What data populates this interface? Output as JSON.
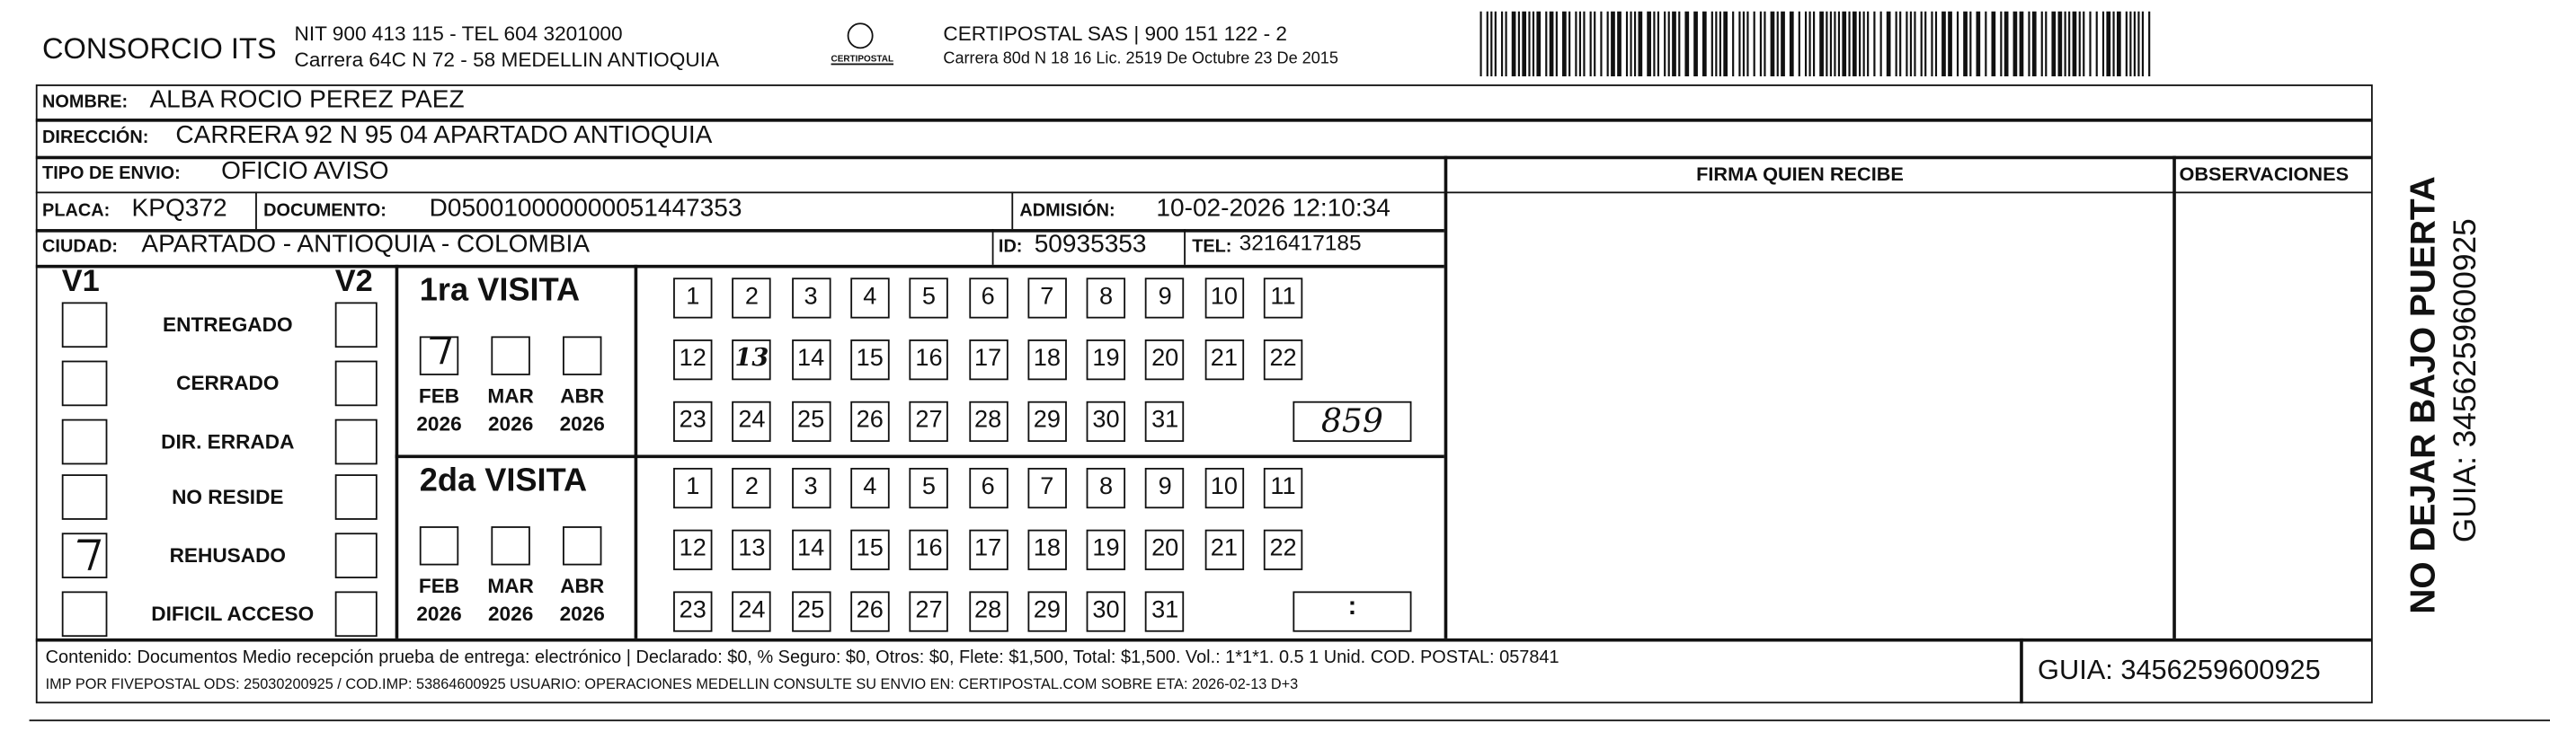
{
  "header": {
    "company": "CONSORCIO ITS",
    "nit": "NIT 900 413 115 - TEL 604 3201000",
    "address": "Carrera 64C N 72 - 58 MEDELLIN ANTIOQUIA",
    "logo": "CERTIPOSTAL",
    "carrier": "CERTIPOSTAL SAS | 900 151 122 - 2",
    "carrier_address": "Carrera 80d N 18 16 Lic. 2519 De Octubre 23 De 2015"
  },
  "fields": {
    "nombre": {
      "label": "NOMBRE:",
      "value": "ALBA ROCIO PEREZ PAEZ"
    },
    "direccion": {
      "label": "DIRECCIÓN:",
      "value": "CARRERA 92 N 95 04 APARTADO ANTIOQUIA"
    },
    "tipo": {
      "label": "TIPO DE ENVIO:",
      "value": "OFICIO AVISO"
    },
    "placa": {
      "label": "PLACA:",
      "value": "KPQ372"
    },
    "documento": {
      "label": "DOCUMENTO:",
      "value": "D050010000000051447353"
    },
    "admision": {
      "label": "ADMISIÓN:",
      "value": "10-02-2026 12:10:34"
    },
    "ciudad": {
      "label": "CIUDAD:",
      "value": "APARTADO - ANTIOQUIA - COLOMBIA"
    },
    "id": {
      "label": "ID:",
      "value": "50935353"
    },
    "tel": {
      "label": "TEL:",
      "value": "3216417185"
    }
  },
  "columns": {
    "firma": "FIRMA QUIEN RECIBE",
    "observaciones": "OBSERVACIONES"
  },
  "v1": "V1",
  "v2": "V2",
  "reasons": [
    {
      "label": "ENTREGADO",
      "v1": false
    },
    {
      "label": "CERRADO",
      "v1": false
    },
    {
      "label": "DIR. ERRADA",
      "v1": false
    },
    {
      "label": "NO RESIDE",
      "v1": false
    },
    {
      "label": "REHUSADO",
      "v1": true
    },
    {
      "label": "DIFICIL ACCESO",
      "v1": false
    }
  ],
  "visits": [
    {
      "title": "1ra VISITA",
      "months": [
        {
          "month": "FEB",
          "year": "2026",
          "checked": true
        },
        {
          "month": "MAR",
          "year": "2026",
          "checked": false
        },
        {
          "month": "ABR",
          "year": "2026",
          "checked": false
        }
      ],
      "days": [
        1,
        2,
        3,
        4,
        5,
        6,
        7,
        8,
        9,
        10,
        11,
        12,
        13,
        14,
        15,
        16,
        17,
        18,
        19,
        20,
        21,
        22,
        23,
        24,
        25,
        26,
        27,
        28,
        29,
        30,
        31
      ],
      "marked_day": 13,
      "time": "859"
    },
    {
      "title": "2da VISITA",
      "months": [
        {
          "month": "FEB",
          "year": "2026",
          "checked": false
        },
        {
          "month": "MAR",
          "year": "2026",
          "checked": false
        },
        {
          "month": "ABR",
          "year": "2026",
          "checked": false
        }
      ],
      "days": [
        1,
        2,
        3,
        4,
        5,
        6,
        7,
        8,
        9,
        10,
        11,
        12,
        13,
        14,
        15,
        16,
        17,
        18,
        19,
        20,
        21,
        22,
        23,
        24,
        25,
        26,
        27,
        28,
        29,
        30,
        31
      ],
      "time": ":"
    }
  ],
  "footer": {
    "contenido": "Contenido: Documentos Medio recepción prueba de entrega: electrónico | Declarado: $0, % Seguro: $0, Otros: $0, Flete: $1,500, Total: $1,500. Vol.: 1*1*1. 0.5  1 Unid. COD. POSTAL: 057841",
    "imp": "IMP POR FIVEPOSTAL ODS: 25030200925 / COD.IMP: 53864600925 USUARIO: OPERACIONES MEDELLIN CONSULTE SU ENVIO EN: CERTIPOSTAL.COM SOBRE ETA: 2026-02-13 D+3",
    "guia": "GUIA: 3456259600925"
  },
  "side": {
    "warning": "NO DEJAR BAJO PUERTA",
    "guia": "GUIA: 3456259600925"
  }
}
